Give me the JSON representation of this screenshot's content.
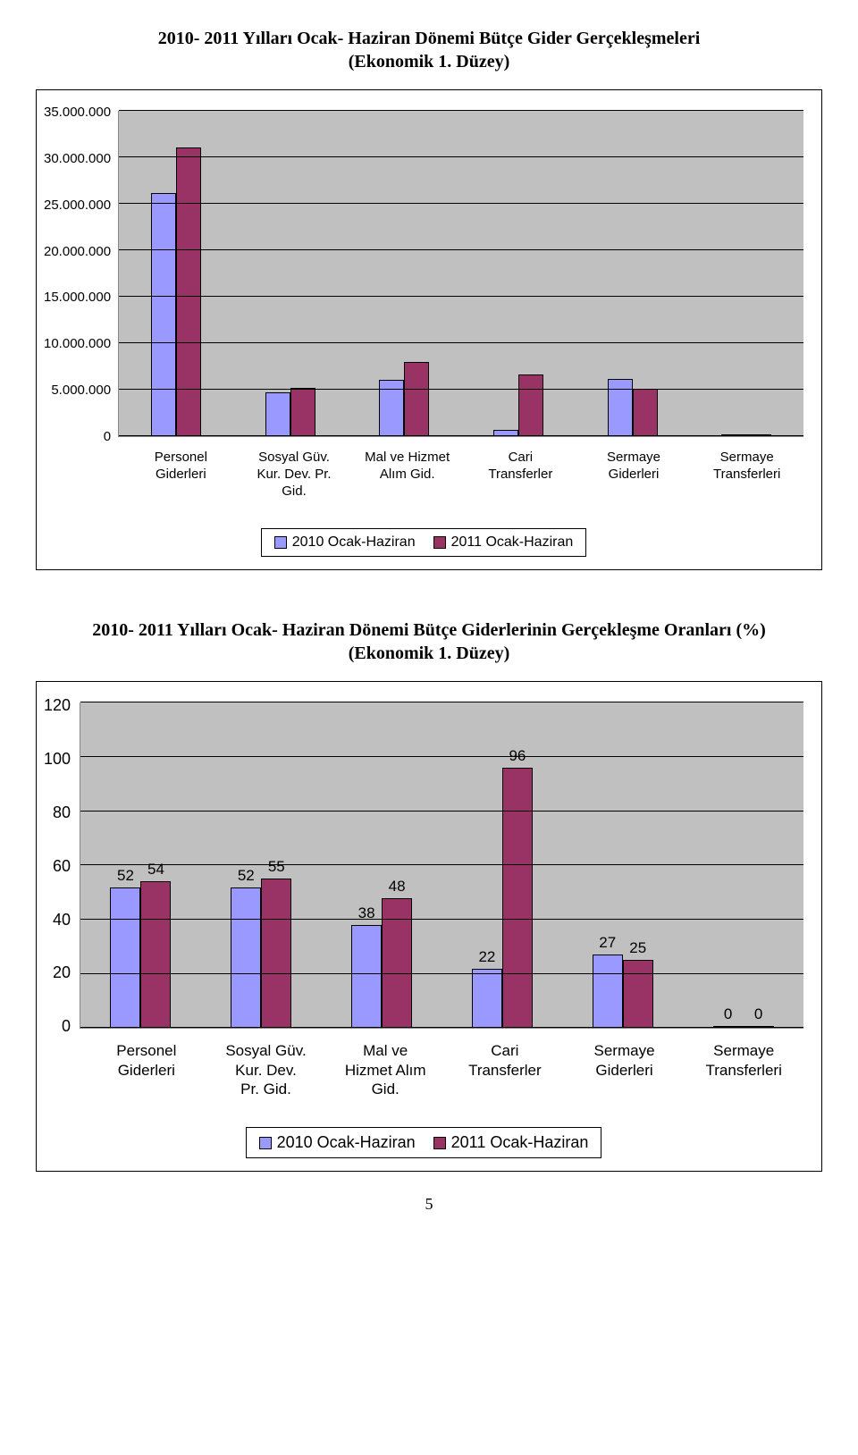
{
  "colors": {
    "series_a": "#9999ff",
    "series_b": "#993366",
    "plot_bg": "#c0c0c0",
    "grid": "#000000",
    "border": "#000000"
  },
  "chart1": {
    "title_line1": "2010- 2011 Yılları Ocak- Haziran Dönemi Bütçe Gider Gerçekleşmeleri",
    "title_line2": "(Ekonomik 1. Düzey)",
    "y_max": 35000000,
    "y_ticks": [
      "35.000.000",
      "30.000.000",
      "25.000.000",
      "20.000.000",
      "15.000.000",
      "10.000.000",
      "5.000.000",
      "0"
    ],
    "categories": [
      {
        "label_l1": "Personel",
        "label_l2": "Giderleri",
        "a": 26200000,
        "b": 31100000
      },
      {
        "label_l1": "Sosyal Güv.",
        "label_l2": "Kur. Dev. Pr.",
        "label_l3": "Gid.",
        "a": 4700000,
        "b": 5200000
      },
      {
        "label_l1": "Mal ve Hizmet",
        "label_l2": "Alım Gid.",
        "a": 6100000,
        "b": 8000000
      },
      {
        "label_l1": "Cari",
        "label_l2": "Transferler",
        "a": 700000,
        "b": 6600000
      },
      {
        "label_l1": "Sermaye",
        "label_l2": "Giderleri",
        "a": 6200000,
        "b": 5100000
      },
      {
        "label_l1": "Sermaye",
        "label_l2": "Transferleri",
        "a": 0,
        "b": 0
      }
    ]
  },
  "chart2": {
    "title_line1": "2010- 2011 Yılları Ocak- Haziran Dönemi Bütçe Giderlerinin Gerçekleşme Oranları (%)",
    "title_line2": "(Ekonomik 1. Düzey)",
    "y_max": 120,
    "y_ticks": [
      "120",
      "100",
      "80",
      "60",
      "40",
      "20",
      "0"
    ],
    "categories": [
      {
        "label_l1": "Personel",
        "label_l2": "Giderleri",
        "a": 52,
        "b": 54
      },
      {
        "label_l1": "Sosyal Güv.",
        "label_l2": "Kur. Dev.",
        "label_l3": "Pr. Gid.",
        "a": 52,
        "b": 55
      },
      {
        "label_l1": "Mal ve",
        "label_l2": "Hizmet Alım",
        "label_l3": "Gid.",
        "a": 38,
        "b": 48
      },
      {
        "label_l1": "Cari",
        "label_l2": "Transferler",
        "a": 22,
        "b": 96
      },
      {
        "label_l1": "Sermaye",
        "label_l2": "Giderleri",
        "a": 27,
        "b": 25
      },
      {
        "label_l1": "Sermaye",
        "label_l2": "Transferleri",
        "a": 0,
        "b": 0
      }
    ]
  },
  "legend": {
    "a": "2010 Ocak-Haziran",
    "b": "2011 Ocak-Haziran"
  },
  "page_number": "5"
}
